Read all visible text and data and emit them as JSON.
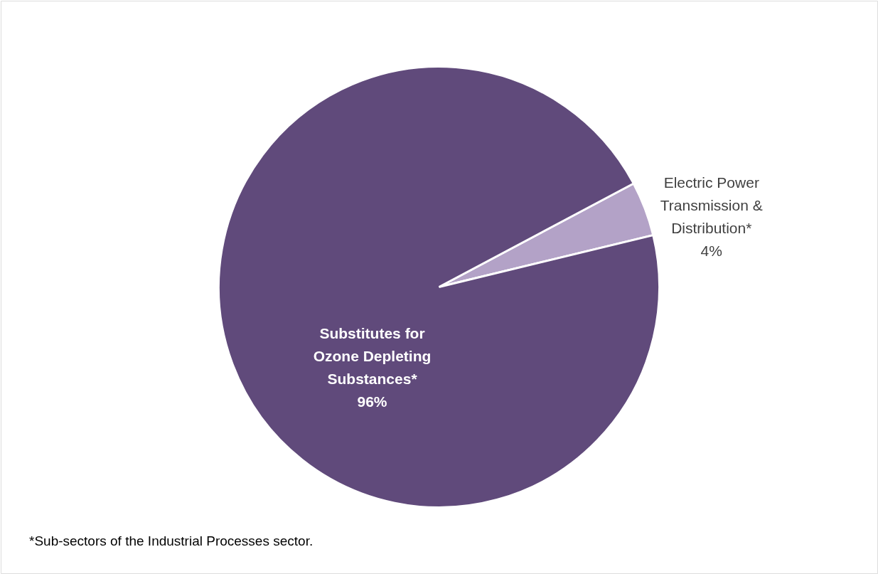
{
  "chart_data": {
    "type": "pie",
    "categories": [
      "Electric Power\nTransmission &\nDistribution*",
      "Substitutes for\nOzone Depleting\nSubstances*"
    ],
    "values": [
      4,
      96
    ],
    "colors": [
      "#b3a2c7",
      "#604a7b"
    ],
    "value_labels": [
      "4%",
      "96%"
    ],
    "annotations": [
      "*Sub-sectors of the Industrial Processes sector."
    ],
    "legend": false
  }
}
